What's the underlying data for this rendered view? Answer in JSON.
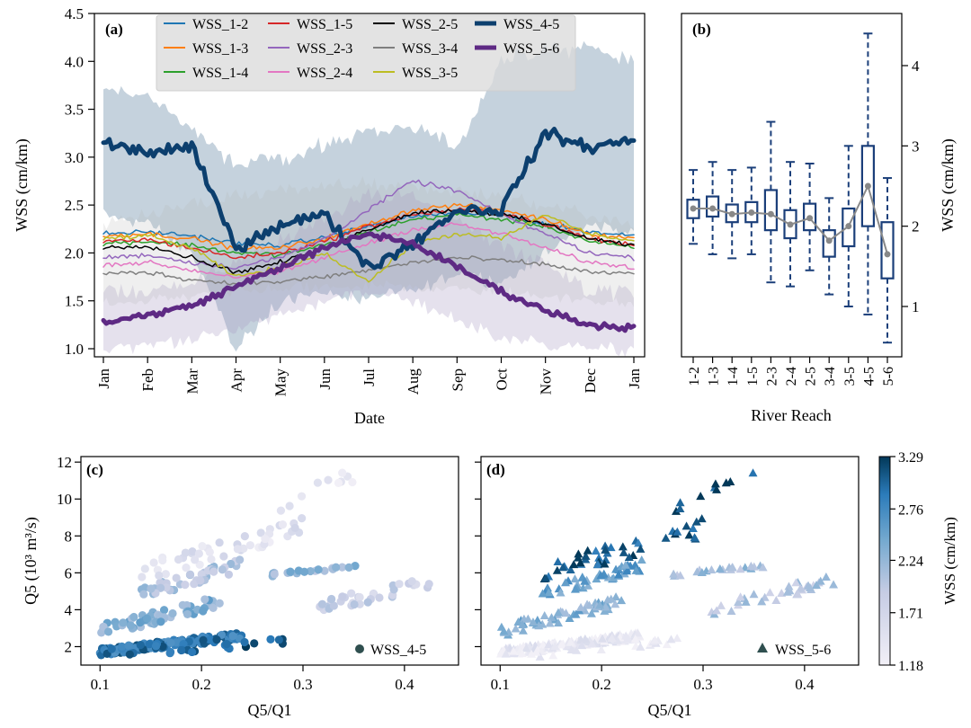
{
  "figure": {
    "panel_a_label": "(a)",
    "panel_b_label": "(b)",
    "panel_c_label": "(c)",
    "panel_d_label": "(d)"
  },
  "colors": {
    "WSS_1-2": "#1f77b4",
    "WSS_1-3": "#ff7f0e",
    "WSS_1-4": "#2ca02c",
    "WSS_1-5": "#d62728",
    "WSS_2-3": "#9467bd",
    "WSS_2-4": "#e377c2",
    "WSS_2-5": "#000000",
    "WSS_3-4": "#7f7f7f",
    "WSS_3-5": "#bcbd22",
    "WSS_4-5": "#0c3f6e",
    "WSS_5-6": "#5e2a84",
    "box": "#1b3f7a",
    "median_line": "#888888",
    "cmap_low": "#f2f0f7",
    "cmap_mid": "#74a9cf",
    "cmap_high": "#023858"
  },
  "chart_data": [
    {
      "id": "a",
      "type": "line",
      "xlabel": "Date",
      "ylabel": "WSS (cm/km)",
      "ylim": [
        0.9,
        4.5
      ],
      "yticks": [
        "1.0",
        "1.5",
        "2.0",
        "2.5",
        "3.0",
        "3.5",
        "4.0",
        "4.5"
      ],
      "x_categories": [
        "Jan",
        "Feb",
        "Mar",
        "Apr",
        "May",
        "Jun",
        "Jul",
        "Aug",
        "Sep",
        "Oct",
        "Nov",
        "Dec",
        "Jan"
      ],
      "legend_position": "top",
      "series": [
        {
          "name": "WSS_1-2",
          "values": [
            2.2,
            2.22,
            2.18,
            2.1,
            2.08,
            2.16,
            2.28,
            2.38,
            2.42,
            2.4,
            2.3,
            2.22,
            2.18
          ]
        },
        {
          "name": "WSS_1-3",
          "values": [
            2.18,
            2.2,
            2.15,
            2.05,
            2.05,
            2.15,
            2.3,
            2.45,
            2.5,
            2.45,
            2.35,
            2.2,
            2.15
          ]
        },
        {
          "name": "WSS_1-4",
          "values": [
            2.1,
            2.12,
            2.08,
            2.0,
            1.98,
            2.08,
            2.22,
            2.35,
            2.4,
            2.35,
            2.28,
            2.12,
            2.05
          ]
        },
        {
          "name": "WSS_1-5",
          "values": [
            2.12,
            2.14,
            2.05,
            1.95,
            2.0,
            2.12,
            2.28,
            2.4,
            2.45,
            2.42,
            2.3,
            2.15,
            2.08
          ]
        },
        {
          "name": "WSS_2-3",
          "values": [
            1.95,
            1.98,
            1.9,
            1.85,
            1.95,
            2.15,
            2.45,
            2.75,
            2.65,
            2.4,
            2.2,
            2.0,
            1.95
          ]
        },
        {
          "name": "WSS_2-4",
          "values": [
            1.88,
            1.9,
            1.82,
            1.75,
            1.8,
            1.95,
            2.1,
            2.25,
            2.3,
            2.2,
            2.05,
            1.9,
            1.85
          ]
        },
        {
          "name": "WSS_2-5",
          "values": [
            2.05,
            2.08,
            1.95,
            1.8,
            1.9,
            2.05,
            2.25,
            2.42,
            2.45,
            2.4,
            2.3,
            2.15,
            2.08
          ]
        },
        {
          "name": "WSS_3-4",
          "values": [
            1.78,
            1.8,
            1.72,
            1.68,
            1.7,
            1.75,
            1.82,
            1.9,
            1.95,
            1.92,
            1.88,
            1.8,
            1.78
          ]
        },
        {
          "name": "WSS_3-5",
          "values": [
            2.15,
            2.18,
            2.05,
            1.75,
            1.85,
            2.0,
            1.7,
            2.1,
            2.2,
            2.15,
            2.4,
            2.2,
            2.12
          ]
        },
        {
          "name": "WSS_4-5",
          "values": [
            3.15,
            3.05,
            3.1,
            2.05,
            2.3,
            2.4,
            1.85,
            2.1,
            2.45,
            2.45,
            3.25,
            3.1,
            3.18
          ]
        },
        {
          "name": "WSS_5-6",
          "values": [
            1.28,
            1.35,
            1.45,
            1.65,
            1.85,
            2.05,
            2.2,
            2.1,
            1.85,
            1.6,
            1.4,
            1.25,
            1.22
          ]
        }
      ],
      "bands": [
        {
          "name": "WSS_4-5",
          "upper": [
            3.7,
            3.65,
            3.3,
            2.9,
            3.0,
            3.1,
            3.3,
            3.3,
            3.1,
            4.0,
            4.1,
            4.15,
            4.0
          ],
          "lower": [
            2.4,
            2.3,
            2.0,
            1.0,
            1.5,
            1.6,
            1.5,
            1.6,
            1.8,
            1.7,
            2.0,
            2.3,
            2.2
          ]
        },
        {
          "name": "WSS_5-6",
          "upper": [
            1.6,
            1.6,
            1.7,
            1.9,
            2.1,
            2.4,
            2.6,
            2.6,
            2.3,
            2.1,
            1.9,
            1.6,
            1.6
          ],
          "lower": [
            1.0,
            1.05,
            1.1,
            1.2,
            1.35,
            1.5,
            1.6,
            1.5,
            1.3,
            1.1,
            1.05,
            1.0,
            1.0
          ]
        }
      ]
    },
    {
      "id": "b",
      "type": "box",
      "xlabel": "River Reach",
      "ylabel": "WSS (cm/km)",
      "ylim": [
        0.4,
        4.6
      ],
      "yticks": [
        "1",
        "2",
        "3",
        "4"
      ],
      "categories": [
        "1-2",
        "1-3",
        "1-4",
        "1-5",
        "2-3",
        "2-4",
        "2-5",
        "3-4",
        "3-5",
        "4-5",
        "5-6"
      ],
      "boxes": [
        {
          "reach": "1-2",
          "min": 1.78,
          "q1": 2.1,
          "median": 2.22,
          "q3": 2.33,
          "max": 2.7
        },
        {
          "reach": "1-3",
          "min": 1.65,
          "q1": 2.12,
          "median": 2.22,
          "q3": 2.37,
          "max": 2.8
        },
        {
          "reach": "1-4",
          "min": 1.6,
          "q1": 2.05,
          "median": 2.15,
          "q3": 2.27,
          "max": 2.7
        },
        {
          "reach": "1-5",
          "min": 1.65,
          "q1": 2.05,
          "median": 2.17,
          "q3": 2.3,
          "max": 2.73
        },
        {
          "reach": "2-3",
          "min": 1.3,
          "q1": 1.95,
          "median": 2.15,
          "q3": 2.45,
          "max": 3.3
        },
        {
          "reach": "2-4",
          "min": 1.25,
          "q1": 1.85,
          "median": 2.02,
          "q3": 2.2,
          "max": 2.8
        },
        {
          "reach": "2-5",
          "min": 1.45,
          "q1": 1.95,
          "median": 2.1,
          "q3": 2.28,
          "max": 2.78
        },
        {
          "reach": "3-4",
          "min": 1.15,
          "q1": 1.62,
          "median": 1.82,
          "q3": 1.95,
          "max": 2.35
        },
        {
          "reach": "3-5",
          "min": 1.0,
          "q1": 1.75,
          "median": 2.0,
          "q3": 2.22,
          "max": 3.0
        },
        {
          "reach": "4-5",
          "min": 0.9,
          "q1": 2.0,
          "median": 2.5,
          "q3": 3.0,
          "max": 4.4
        },
        {
          "reach": "5-6",
          "min": 0.55,
          "q1": 1.35,
          "median": 1.65,
          "q3": 2.05,
          "max": 2.6
        }
      ]
    },
    {
      "id": "c",
      "type": "scatter",
      "xlabel": "Q5/Q1",
      "ylabel": "Q5 (10³ m³/s)",
      "xlim": [
        0.08,
        0.45
      ],
      "ylim": [
        1.0,
        12.3
      ],
      "xticks": [
        "0.1",
        "0.2",
        "0.3",
        "0.4"
      ],
      "yticks": [
        "2",
        "4",
        "6",
        "8",
        "10",
        "12"
      ],
      "legend": "WSS_4-5",
      "marker": "circle",
      "value_field": "WSS_4-5"
    },
    {
      "id": "d",
      "type": "scatter",
      "xlabel": "Q5/Q1",
      "xlim": [
        0.08,
        0.45
      ],
      "ylim": [
        1.0,
        12.3
      ],
      "xticks": [
        "0.1",
        "0.2",
        "0.3",
        "0.4"
      ],
      "legend": "WSS_5-6",
      "marker": "triangle",
      "value_field": "WSS_5-6"
    },
    {
      "id": "colorbar",
      "type": "colorbar",
      "label": "WSS (cm/km)",
      "range": [
        1.18,
        3.29
      ],
      "ticks": [
        "1.18",
        "1.71",
        "2.24",
        "2.76",
        "3.29"
      ]
    }
  ]
}
